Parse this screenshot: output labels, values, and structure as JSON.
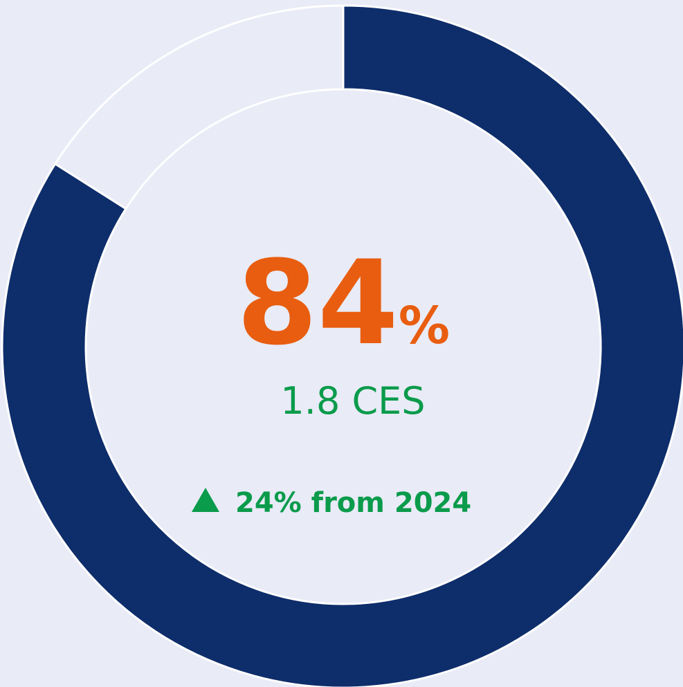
{
  "chart_data": {
    "type": "pie",
    "donut": true,
    "values": [
      84,
      16
    ],
    "colors": [
      "#0e2d6b",
      "#e9ebf7"
    ],
    "value_labels": [
      "84%",
      null
    ],
    "subtitle": "1.8 CES",
    "annotation": "24% from 2024"
  }
}
